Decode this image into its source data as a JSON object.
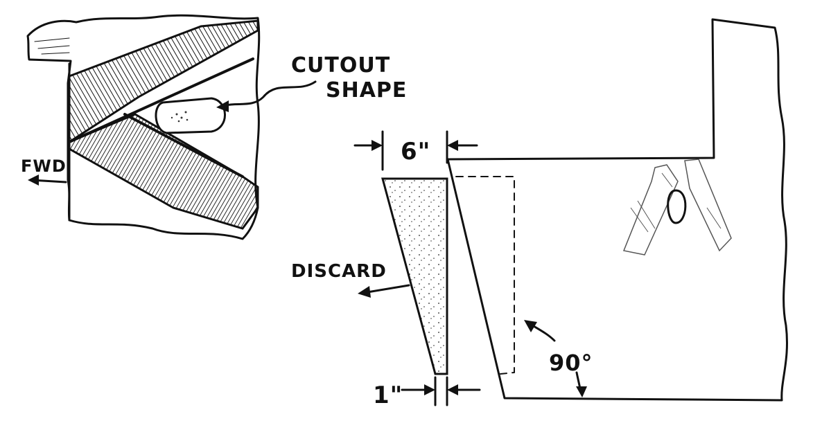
{
  "labels": {
    "cutout_line1": "CUTOUT",
    "cutout_line2": "SHAPE",
    "fwd": "FWD",
    "width_top": "6\"",
    "width_bottom": "1\"",
    "discard": "DISCARD",
    "angle": "90°"
  },
  "colors": {
    "ink": "#111111",
    "paper": "#ffffff"
  }
}
